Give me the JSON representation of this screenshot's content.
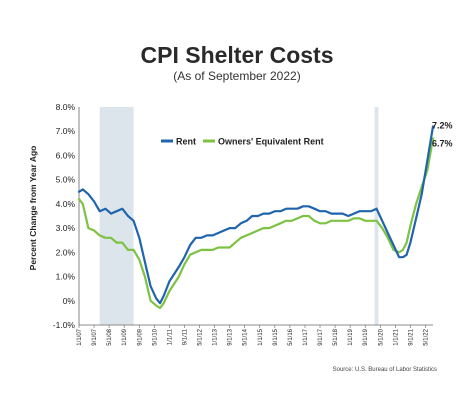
{
  "chart_data": {
    "type": "line",
    "title": "CPI Shelter Costs",
    "subtitle": "(As of September 2022)",
    "ylabel": "Percent Change from Year Ago",
    "xlabel": "",
    "ylim": [
      -1.0,
      8.0
    ],
    "yticks": [
      "-1.0%",
      "0%",
      "1.0%",
      "2.0%",
      "3.0%",
      "4.0%",
      "5.0%",
      "6.0%",
      "7.0%",
      "8.0%"
    ],
    "xticks": [
      "1/1/07",
      "9/1/07",
      "5/1/08",
      "1/1/09",
      "9/1/09",
      "5/1/10",
      "1/1/11",
      "9/1/11",
      "5/1/12",
      "1/1/13",
      "9/1/13",
      "5/1/14",
      "1/1/15",
      "9/1/15",
      "5/1/16",
      "1/1/17",
      "9/1/17",
      "5/1/18",
      "1/1/19",
      "9/1/19",
      "5/1/20",
      "1/1/21",
      "9/1/21",
      "5/1/22"
    ],
    "xrange": [
      "2007-01",
      "2022-09"
    ],
    "grid": false,
    "legend_position": "top-center",
    "recessions": [
      {
        "start": "2007-12",
        "end": "2009-06"
      },
      {
        "start": "2020-02",
        "end": "2020-04"
      }
    ],
    "end_labels": [
      "7.2%",
      "6.7%"
    ],
    "source": "Source: U.S. Bureau of Labor Statistics",
    "colors": {
      "Rent": "#1f64ad",
      "Owners' Equivalent Rent": "#7dc242",
      "recession": "#dde5ec"
    },
    "series": [
      {
        "name": "Rent",
        "points": [
          [
            "2007-01",
            4.5
          ],
          [
            "2007-03",
            4.6
          ],
          [
            "2007-06",
            4.4
          ],
          [
            "2007-09",
            4.1
          ],
          [
            "2007-12",
            3.7
          ],
          [
            "2008-03",
            3.8
          ],
          [
            "2008-06",
            3.6
          ],
          [
            "2008-09",
            3.7
          ],
          [
            "2008-12",
            3.8
          ],
          [
            "2009-03",
            3.5
          ],
          [
            "2009-06",
            3.3
          ],
          [
            "2009-09",
            2.6
          ],
          [
            "2009-12",
            1.6
          ],
          [
            "2010-03",
            0.6
          ],
          [
            "2010-06",
            0.1
          ],
          [
            "2010-08",
            -0.1
          ],
          [
            "2010-10",
            0.2
          ],
          [
            "2011-01",
            0.8
          ],
          [
            "2011-06",
            1.4
          ],
          [
            "2011-09",
            1.8
          ],
          [
            "2011-12",
            2.3
          ],
          [
            "2012-03",
            2.6
          ],
          [
            "2012-06",
            2.6
          ],
          [
            "2012-09",
            2.7
          ],
          [
            "2012-12",
            2.7
          ],
          [
            "2013-03",
            2.8
          ],
          [
            "2013-06",
            2.9
          ],
          [
            "2013-09",
            3.0
          ],
          [
            "2013-12",
            3.0
          ],
          [
            "2014-03",
            3.2
          ],
          [
            "2014-06",
            3.3
          ],
          [
            "2014-09",
            3.5
          ],
          [
            "2014-12",
            3.5
          ],
          [
            "2015-03",
            3.6
          ],
          [
            "2015-06",
            3.6
          ],
          [
            "2015-09",
            3.7
          ],
          [
            "2015-12",
            3.7
          ],
          [
            "2016-03",
            3.8
          ],
          [
            "2016-06",
            3.8
          ],
          [
            "2016-09",
            3.8
          ],
          [
            "2016-12",
            3.9
          ],
          [
            "2017-03",
            3.9
          ],
          [
            "2017-06",
            3.8
          ],
          [
            "2017-09",
            3.7
          ],
          [
            "2017-12",
            3.7
          ],
          [
            "2018-03",
            3.6
          ],
          [
            "2018-06",
            3.6
          ],
          [
            "2018-09",
            3.6
          ],
          [
            "2018-12",
            3.5
          ],
          [
            "2019-03",
            3.6
          ],
          [
            "2019-06",
            3.7
          ],
          [
            "2019-09",
            3.7
          ],
          [
            "2019-12",
            3.7
          ],
          [
            "2020-03",
            3.8
          ],
          [
            "2020-06",
            3.3
          ],
          [
            "2020-09",
            2.8
          ],
          [
            "2020-12",
            2.3
          ],
          [
            "2021-03",
            1.8
          ],
          [
            "2021-05",
            1.8
          ],
          [
            "2021-07",
            1.9
          ],
          [
            "2021-09",
            2.4
          ],
          [
            "2021-12",
            3.4
          ],
          [
            "2022-03",
            4.4
          ],
          [
            "2022-06",
            5.8
          ],
          [
            "2022-09",
            7.2
          ]
        ]
      },
      {
        "name": "Owners' Equivalent Rent",
        "points": [
          [
            "2007-01",
            4.2
          ],
          [
            "2007-03",
            4.0
          ],
          [
            "2007-06",
            3.0
          ],
          [
            "2007-09",
            2.9
          ],
          [
            "2007-12",
            2.7
          ],
          [
            "2008-03",
            2.6
          ],
          [
            "2008-06",
            2.6
          ],
          [
            "2008-09",
            2.4
          ],
          [
            "2008-12",
            2.4
          ],
          [
            "2009-03",
            2.1
          ],
          [
            "2009-06",
            2.1
          ],
          [
            "2009-09",
            1.7
          ],
          [
            "2009-12",
            1.0
          ],
          [
            "2010-03",
            0.0
          ],
          [
            "2010-06",
            -0.2
          ],
          [
            "2010-08",
            -0.3
          ],
          [
            "2010-10",
            -0.1
          ],
          [
            "2011-01",
            0.4
          ],
          [
            "2011-06",
            1.0
          ],
          [
            "2011-09",
            1.5
          ],
          [
            "2011-12",
            1.9
          ],
          [
            "2012-03",
            2.0
          ],
          [
            "2012-06",
            2.1
          ],
          [
            "2012-09",
            2.1
          ],
          [
            "2012-12",
            2.1
          ],
          [
            "2013-03",
            2.2
          ],
          [
            "2013-06",
            2.2
          ],
          [
            "2013-09",
            2.2
          ],
          [
            "2013-12",
            2.4
          ],
          [
            "2014-03",
            2.6
          ],
          [
            "2014-06",
            2.7
          ],
          [
            "2014-09",
            2.8
          ],
          [
            "2014-12",
            2.9
          ],
          [
            "2015-03",
            3.0
          ],
          [
            "2015-06",
            3.0
          ],
          [
            "2015-09",
            3.1
          ],
          [
            "2015-12",
            3.2
          ],
          [
            "2016-03",
            3.3
          ],
          [
            "2016-06",
            3.3
          ],
          [
            "2016-09",
            3.4
          ],
          [
            "2016-12",
            3.5
          ],
          [
            "2017-03",
            3.5
          ],
          [
            "2017-06",
            3.3
          ],
          [
            "2017-09",
            3.2
          ],
          [
            "2017-12",
            3.2
          ],
          [
            "2018-03",
            3.3
          ],
          [
            "2018-06",
            3.3
          ],
          [
            "2018-09",
            3.3
          ],
          [
            "2018-12",
            3.3
          ],
          [
            "2019-03",
            3.4
          ],
          [
            "2019-06",
            3.4
          ],
          [
            "2019-09",
            3.3
          ],
          [
            "2019-12",
            3.3
          ],
          [
            "2020-03",
            3.3
          ],
          [
            "2020-06",
            3.0
          ],
          [
            "2020-09",
            2.6
          ],
          [
            "2020-12",
            2.1
          ],
          [
            "2021-03",
            2.0
          ],
          [
            "2021-05",
            2.1
          ],
          [
            "2021-07",
            2.4
          ],
          [
            "2021-09",
            3.1
          ],
          [
            "2021-12",
            4.0
          ],
          [
            "2022-03",
            4.7
          ],
          [
            "2022-06",
            5.4
          ],
          [
            "2022-09",
            6.7
          ]
        ]
      }
    ]
  }
}
